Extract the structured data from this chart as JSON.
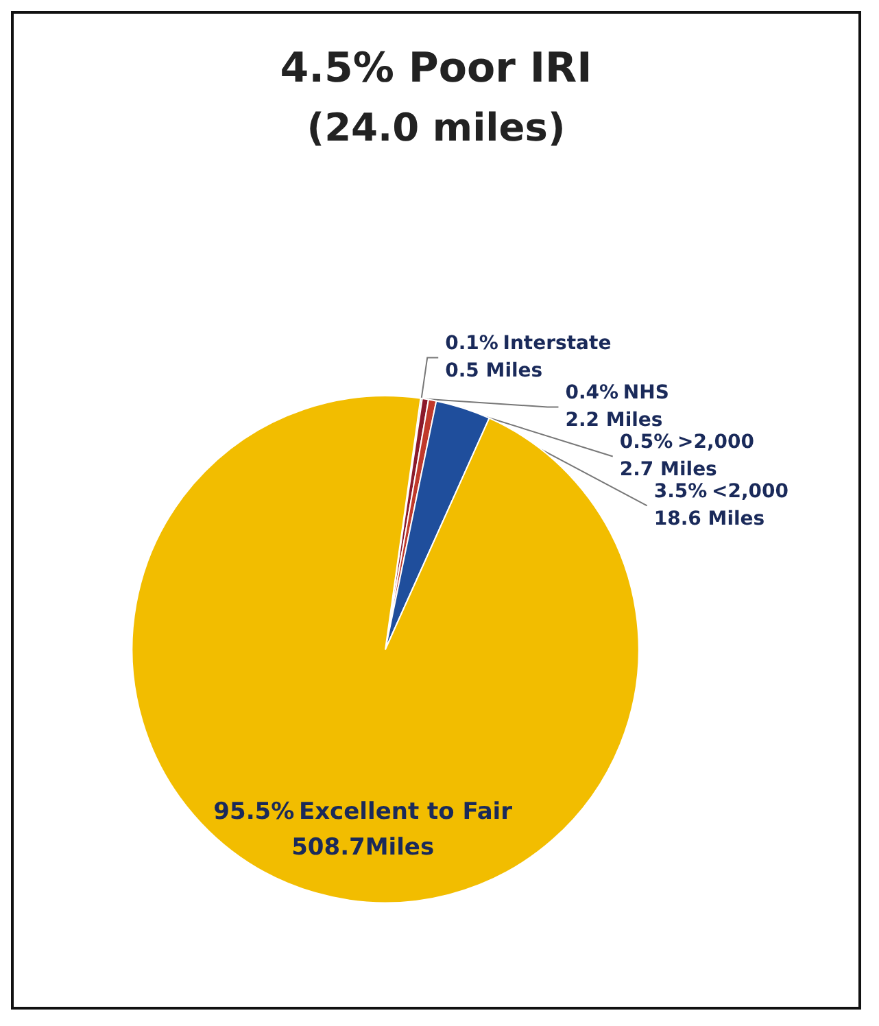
{
  "chart_data": {
    "type": "pie",
    "title": "4.5% Poor IRI",
    "subtitle": "(24.0 miles)",
    "categories": [
      "Interstate",
      "NHS",
      ">2,000",
      "<2,000",
      "Excellent to Fair"
    ],
    "values": [
      0.1,
      0.4,
      0.5,
      3.5,
      95.5
    ],
    "colors": [
      "#1e7a4a",
      "#8b1a2b",
      "#c0392b",
      "#1f4e9c",
      "#f2bd00"
    ],
    "value_labels": [
      "0.1%",
      "0.4%",
      "0.5%",
      "3.5%",
      "95.5%"
    ],
    "annotations": [
      "0.5 Miles",
      "2.2 Miles",
      "2.7 Miles",
      "18.6 Miles",
      "508.7Miles"
    ]
  }
}
